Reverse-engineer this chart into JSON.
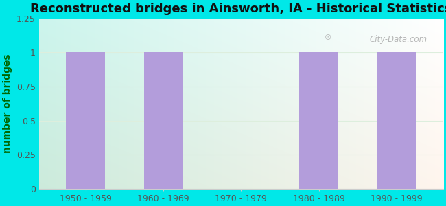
{
  "title": "Reconstructed bridges in Ainsworth, IA - Historical Statistics",
  "categories": [
    "1950 - 1959",
    "1960 - 1969",
    "1970 - 1979",
    "1980 - 1989",
    "1990 - 1999"
  ],
  "values": [
    1,
    1,
    0,
    1,
    1
  ],
  "bar_color": "#b39ddb",
  "background_color": "#00e8e8",
  "ylabel": "number of bridges",
  "ylim": [
    0,
    1.25
  ],
  "yticks": [
    0,
    0.25,
    0.5,
    0.75,
    1,
    1.25
  ],
  "title_fontsize": 13,
  "ylabel_fontsize": 10,
  "tick_fontsize": 9,
  "bar_width": 0.5,
  "watermark": "City-Data.com",
  "grid_color": "#ddeedd"
}
